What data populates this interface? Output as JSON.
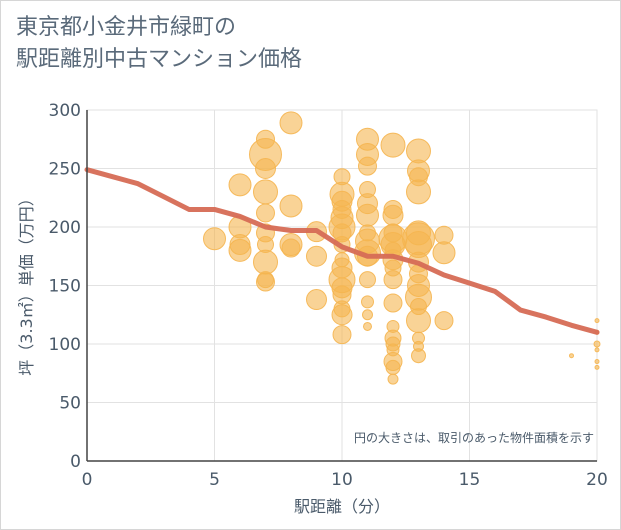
{
  "title": {
    "line1": "東京都小金井市緑町の",
    "line2": "駅距離別中古マンション価格"
  },
  "colors": {
    "bubble": "#f5b550",
    "line": "#d66b55",
    "grid": "#e2e2e2",
    "text": "#4a5a6a"
  },
  "chart_data": {
    "type": "scatter",
    "title": "東京都小金井市緑町の駅距離別中古マンション価格",
    "xlabel": "駅距離（分）",
    "ylabel": "坪（3.3㎡）単価（万円）",
    "xlim": [
      0,
      20
    ],
    "ylim": [
      0,
      300
    ],
    "xticks": [
      "0",
      "5",
      "10",
      "15",
      "20"
    ],
    "yticks": [
      "0",
      "50",
      "100",
      "150",
      "200",
      "250",
      "300"
    ],
    "grid": true,
    "annotation": "円の大きさは、取引のあった物件面積を示す",
    "bubbles": [
      [
        5,
        190,
        11
      ],
      [
        6,
        236,
        11
      ],
      [
        6,
        200,
        11
      ],
      [
        6,
        185,
        10
      ],
      [
        6,
        180,
        11
      ],
      [
        7,
        275,
        9
      ],
      [
        7,
        262,
        16
      ],
      [
        7,
        250,
        10
      ],
      [
        7,
        230,
        12
      ],
      [
        7,
        212,
        9
      ],
      [
        7,
        195,
        9
      ],
      [
        7,
        185,
        8
      ],
      [
        7,
        170,
        12
      ],
      [
        7,
        155,
        8
      ],
      [
        7,
        153,
        9
      ],
      [
        8,
        289,
        11
      ],
      [
        8,
        218,
        11
      ],
      [
        8,
        185,
        11
      ],
      [
        8,
        182,
        9
      ],
      [
        9,
        196,
        10
      ],
      [
        9,
        175,
        10
      ],
      [
        9,
        138,
        10
      ],
      [
        10,
        243,
        8
      ],
      [
        10,
        228,
        12
      ],
      [
        10,
        222,
        10
      ],
      [
        10,
        215,
        9
      ],
      [
        10,
        208,
        11
      ],
      [
        10,
        200,
        13
      ],
      [
        10,
        195,
        9
      ],
      [
        10,
        185,
        8
      ],
      [
        10,
        172,
        7
      ],
      [
        10,
        165,
        10
      ],
      [
        10,
        155,
        13
      ],
      [
        10,
        148,
        10
      ],
      [
        10,
        142,
        9
      ],
      [
        10,
        130,
        8
      ],
      [
        10,
        125,
        10
      ],
      [
        10,
        108,
        9
      ],
      [
        11,
        275,
        11
      ],
      [
        11,
        262,
        11
      ],
      [
        11,
        252,
        9
      ],
      [
        11,
        232,
        8
      ],
      [
        11,
        220,
        10
      ],
      [
        11,
        210,
        11
      ],
      [
        11,
        195,
        8
      ],
      [
        11,
        188,
        12
      ],
      [
        11,
        178,
        13
      ],
      [
        11,
        175,
        10
      ],
      [
        11,
        155,
        8
      ],
      [
        11,
        136,
        6
      ],
      [
        11,
        125,
        5
      ],
      [
        11,
        115,
        4
      ],
      [
        12,
        270,
        12
      ],
      [
        12,
        215,
        9
      ],
      [
        12,
        210,
        10
      ],
      [
        12,
        195,
        9
      ],
      [
        12,
        190,
        14
      ],
      [
        12,
        185,
        12
      ],
      [
        12,
        180,
        8
      ],
      [
        12,
        172,
        10
      ],
      [
        12,
        165,
        8
      ],
      [
        12,
        155,
        9
      ],
      [
        12,
        135,
        9
      ],
      [
        12,
        115,
        6
      ],
      [
        12,
        105,
        8
      ],
      [
        12,
        100,
        7
      ],
      [
        12,
        95,
        6
      ],
      [
        12,
        85,
        9
      ],
      [
        12,
        80,
        7
      ],
      [
        12,
        70,
        5
      ],
      [
        13,
        265,
        12
      ],
      [
        13,
        248,
        11
      ],
      [
        13,
        243,
        9
      ],
      [
        13,
        230,
        12
      ],
      [
        13,
        195,
        12
      ],
      [
        13,
        190,
        16
      ],
      [
        13,
        185,
        13
      ],
      [
        13,
        170,
        10
      ],
      [
        13,
        160,
        9
      ],
      [
        13,
        150,
        11
      ],
      [
        13,
        140,
        13
      ],
      [
        13,
        132,
        8
      ],
      [
        13,
        120,
        12
      ],
      [
        13,
        105,
        6
      ],
      [
        13,
        98,
        5
      ],
      [
        13,
        90,
        7
      ],
      [
        14,
        193,
        9
      ],
      [
        14,
        178,
        11
      ],
      [
        14,
        120,
        9
      ],
      [
        19,
        90,
        2
      ],
      [
        20,
        120,
        2
      ],
      [
        20,
        110,
        2
      ],
      [
        20,
        100,
        3
      ],
      [
        20,
        95,
        2
      ],
      [
        20,
        85,
        2
      ],
      [
        20,
        80,
        2
      ]
    ],
    "trend_line": {
      "x": [
        0,
        1,
        2,
        3,
        4,
        5,
        6,
        7,
        8,
        9,
        10,
        11,
        12,
        13,
        14,
        15,
        16,
        17,
        18,
        19,
        20
      ],
      "y": [
        249,
        243,
        237,
        226,
        215,
        215,
        209,
        200,
        197,
        197,
        183,
        175,
        175,
        169,
        159,
        152,
        145,
        129,
        123,
        116,
        110
      ]
    }
  }
}
